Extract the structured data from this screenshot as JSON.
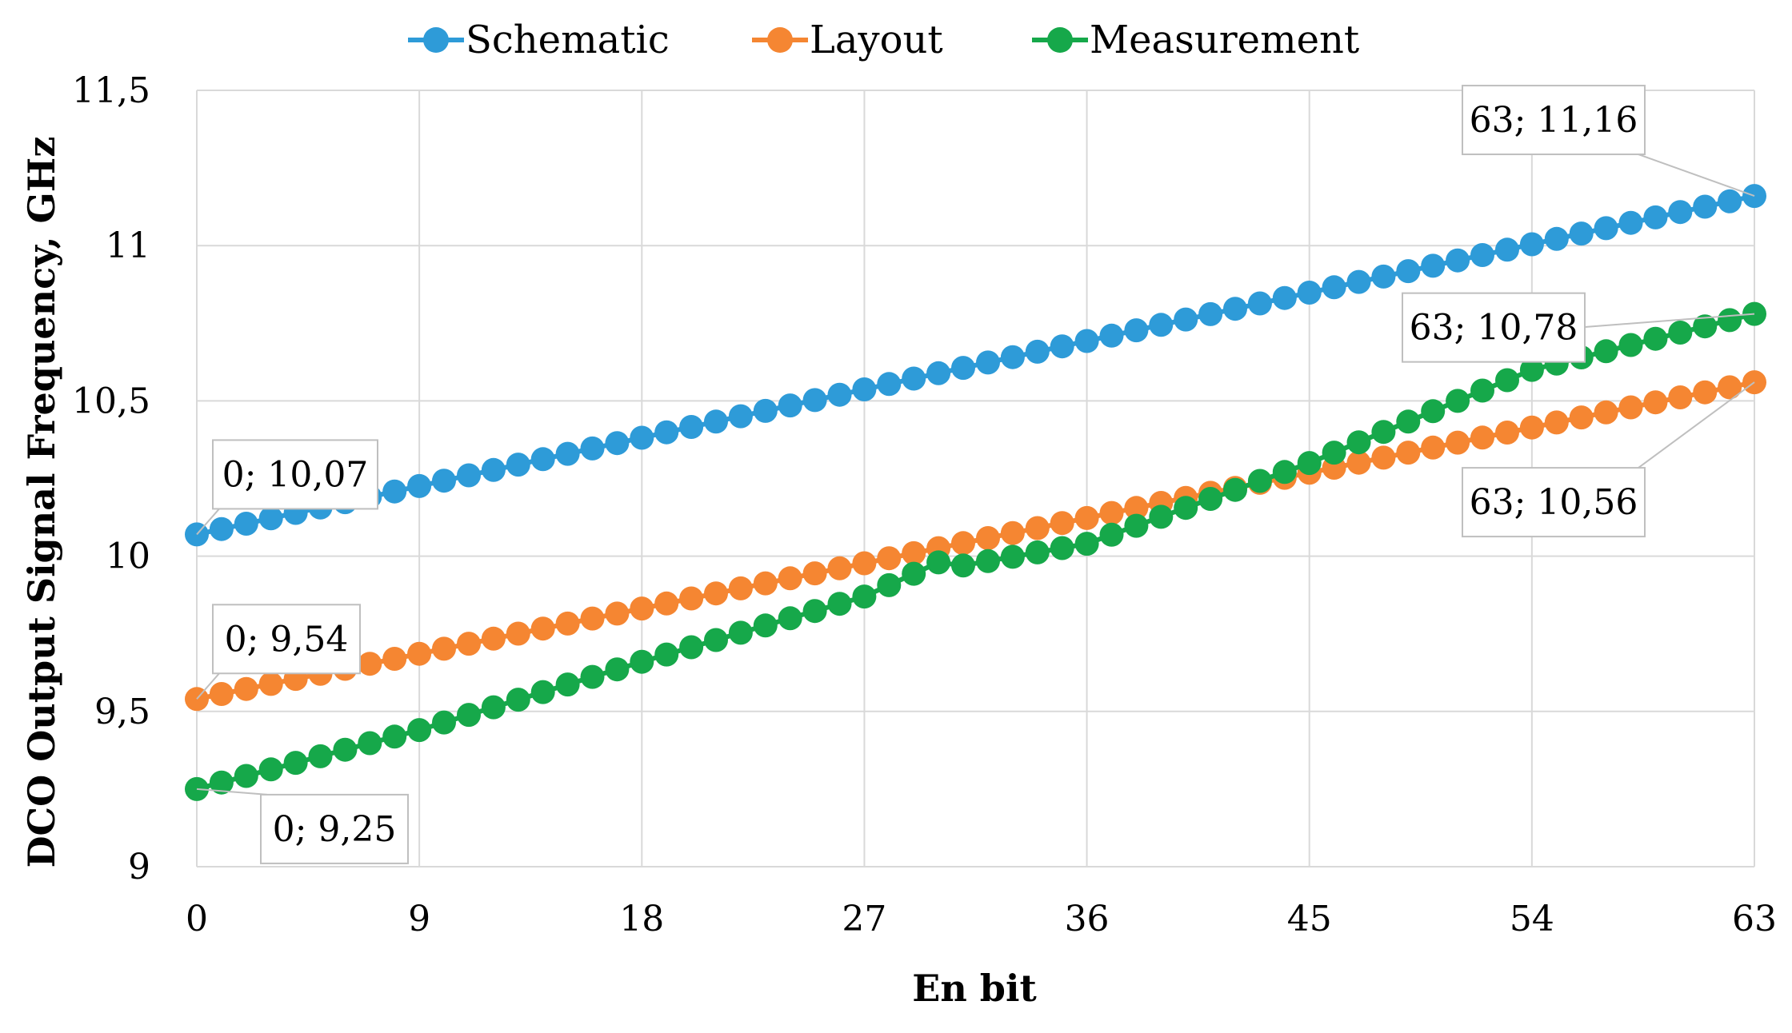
{
  "chart_data": {
    "type": "line",
    "title": "",
    "xlabel": "En bit",
    "ylabel": "DCO Output Signal Frequency, GHz",
    "xlim": [
      0,
      63
    ],
    "ylim": [
      9,
      11.5
    ],
    "x_ticks": [
      0,
      9,
      18,
      27,
      36,
      45,
      54,
      63
    ],
    "x_tick_labels": [
      "0",
      "9",
      "18",
      "27",
      "36",
      "45",
      "54",
      "63"
    ],
    "y_ticks": [
      9,
      9.5,
      10,
      10.5,
      11,
      11.5
    ],
    "y_tick_labels": [
      "9",
      "9,5",
      "10",
      "10,5",
      "11",
      "11,5"
    ],
    "grid": true,
    "legend_position": "top",
    "series": [
      {
        "name": "Schematic",
        "color": "#2e9bd8",
        "x_start": 0,
        "x_end": 63,
        "x_step": 1,
        "anchors": [
          [
            0,
            10.07
          ],
          [
            63,
            11.16
          ]
        ]
      },
      {
        "name": "Layout",
        "color": "#f58632",
        "x_start": 0,
        "x_end": 63,
        "x_step": 1,
        "anchors": [
          [
            0,
            9.54
          ],
          [
            63,
            10.56
          ]
        ]
      },
      {
        "name": "Measurement",
        "color": "#16a84a",
        "x_start": 0,
        "x_end": 63,
        "x_step": 1,
        "anchors": [
          [
            0,
            9.25
          ],
          [
            9,
            9.44
          ],
          [
            18,
            9.66
          ],
          [
            27,
            9.87
          ],
          [
            30,
            9.98
          ],
          [
            31,
            9.97
          ],
          [
            36,
            10.04
          ],
          [
            45,
            10.3
          ],
          [
            54,
            10.6
          ],
          [
            63,
            10.78
          ]
        ]
      }
    ],
    "annotations": [
      {
        "series": "Schematic",
        "x": 0,
        "y": 10.07,
        "text": "0; 10,07",
        "placement": "upper-right"
      },
      {
        "series": "Layout",
        "x": 0,
        "y": 9.54,
        "text": "0; 9,54",
        "placement": "upper-right"
      },
      {
        "series": "Measurement",
        "x": 0,
        "y": 9.25,
        "text": "0; 9,25",
        "placement": "lower-right"
      },
      {
        "series": "Schematic",
        "x": 63,
        "y": 11.16,
        "text": "63; 11,16",
        "placement": "upper-left"
      },
      {
        "series": "Measurement",
        "x": 63,
        "y": 10.78,
        "text": "63; 10,78",
        "placement": "left"
      },
      {
        "series": "Layout",
        "x": 63,
        "y": 10.56,
        "text": "63; 10,56",
        "placement": "lower-left"
      }
    ]
  }
}
